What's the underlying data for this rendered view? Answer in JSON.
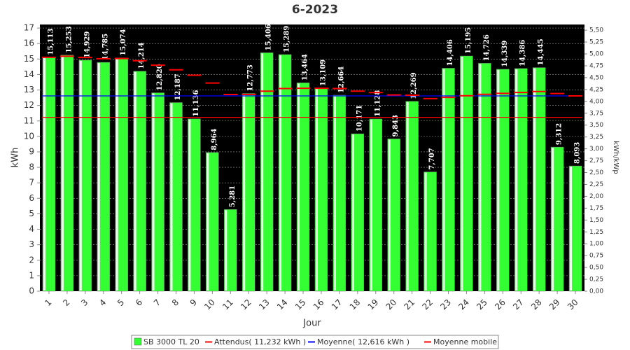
{
  "chart_data": {
    "type": "bar",
    "title": "6-2023",
    "x_label": "Jour",
    "y_label": "kWh",
    "y2_label": "kWh/kWp",
    "categories": [
      "1",
      "2",
      "3",
      "4",
      "5",
      "6",
      "7",
      "8",
      "9",
      "10",
      "11",
      "12",
      "13",
      "14",
      "15",
      "16",
      "17",
      "18",
      "19",
      "20",
      "21",
      "22",
      "23",
      "24",
      "25",
      "26",
      "27",
      "28",
      "29",
      "30"
    ],
    "ylim": [
      0,
      17.23
    ],
    "yticks": [
      0,
      1,
      2,
      3,
      4,
      5,
      6,
      7,
      8,
      9,
      10,
      11,
      12,
      13,
      14,
      15,
      16,
      17
    ],
    "y2lim": [
      0,
      5.62
    ],
    "y2ticks": [
      {
        "value": 0,
        "label": "0,00"
      },
      {
        "value": 0.25,
        "label": "0,25"
      },
      {
        "value": 0.5,
        "label": "0,50"
      },
      {
        "value": 0.75,
        "label": "0,75"
      },
      {
        "value": 1,
        "label": "1,00"
      },
      {
        "value": 1.25,
        "label": "1,25"
      },
      {
        "value": 1.5,
        "label": "1,50"
      },
      {
        "value": 1.75,
        "label": "1,75"
      },
      {
        "value": 2,
        "label": "2,00"
      },
      {
        "value": 2.25,
        "label": "2,25"
      },
      {
        "value": 2.5,
        "label": "2,50"
      },
      {
        "value": 2.75,
        "label": "2,75"
      },
      {
        "value": 3,
        "label": "3,00"
      },
      {
        "value": 3.25,
        "label": "3,25"
      },
      {
        "value": 3.5,
        "label": "3,50"
      },
      {
        "value": 3.75,
        "label": "3,75"
      },
      {
        "value": 4,
        "label": "4,00"
      },
      {
        "value": 4.25,
        "label": "4,25"
      },
      {
        "value": 4.5,
        "label": "4,50"
      },
      {
        "value": 4.75,
        "label": "4,75"
      },
      {
        "value": 5,
        "label": "5,00"
      },
      {
        "value": 5.25,
        "label": "5,25"
      },
      {
        "value": 5.5,
        "label": "5,50"
      }
    ],
    "grid": true,
    "series": [
      {
        "name": "SB 3000 TL 20",
        "color": "#33ff33",
        "values": [
          15.113,
          15.253,
          14.929,
          14.785,
          15.074,
          14.214,
          12.82,
          12.187,
          11.136,
          8.964,
          5.281,
          12.773,
          15.406,
          15.289,
          13.464,
          13.109,
          12.664,
          10.171,
          11.128,
          9.843,
          12.269,
          7.707,
          14.406,
          15.195,
          14.726,
          14.339,
          14.386,
          14.445,
          9.312,
          8.093
        ],
        "value_labels": [
          "15,113",
          "15,253",
          "14,929",
          "14,785",
          "15,074",
          "14,214",
          "12,820",
          "12,187",
          "11,136",
          "8,964",
          "5,281",
          "12,773",
          "15,406",
          "15,289",
          "13,464",
          "13,109",
          "12,664",
          "10,171",
          "11,128",
          "9,843",
          "12,269",
          "7,707",
          "14,406",
          "15,195",
          "14,726",
          "14,339",
          "14,386",
          "14,445",
          "9,312",
          "8,093"
        ]
      },
      {
        "name": "Attendus( 11,232 kWh )",
        "color": "#ff0000",
        "value": 11.232
      },
      {
        "name": "Moyenne( 12,616 kWh )",
        "color": "#0000ff",
        "value": 12.616
      },
      {
        "name": "Moyenne mobile",
        "color": "#ff0000",
        "values": [
          15.11,
          15.18,
          15.1,
          15.02,
          15.03,
          14.89,
          14.6,
          14.3,
          13.95,
          13.45,
          12.71,
          12.71,
          12.92,
          13.09,
          13.11,
          13.11,
          13.09,
          12.92,
          12.83,
          12.68,
          12.66,
          12.44,
          12.52,
          12.63,
          12.72,
          12.78,
          12.84,
          12.9,
          12.77,
          12.62
        ]
      }
    ]
  }
}
